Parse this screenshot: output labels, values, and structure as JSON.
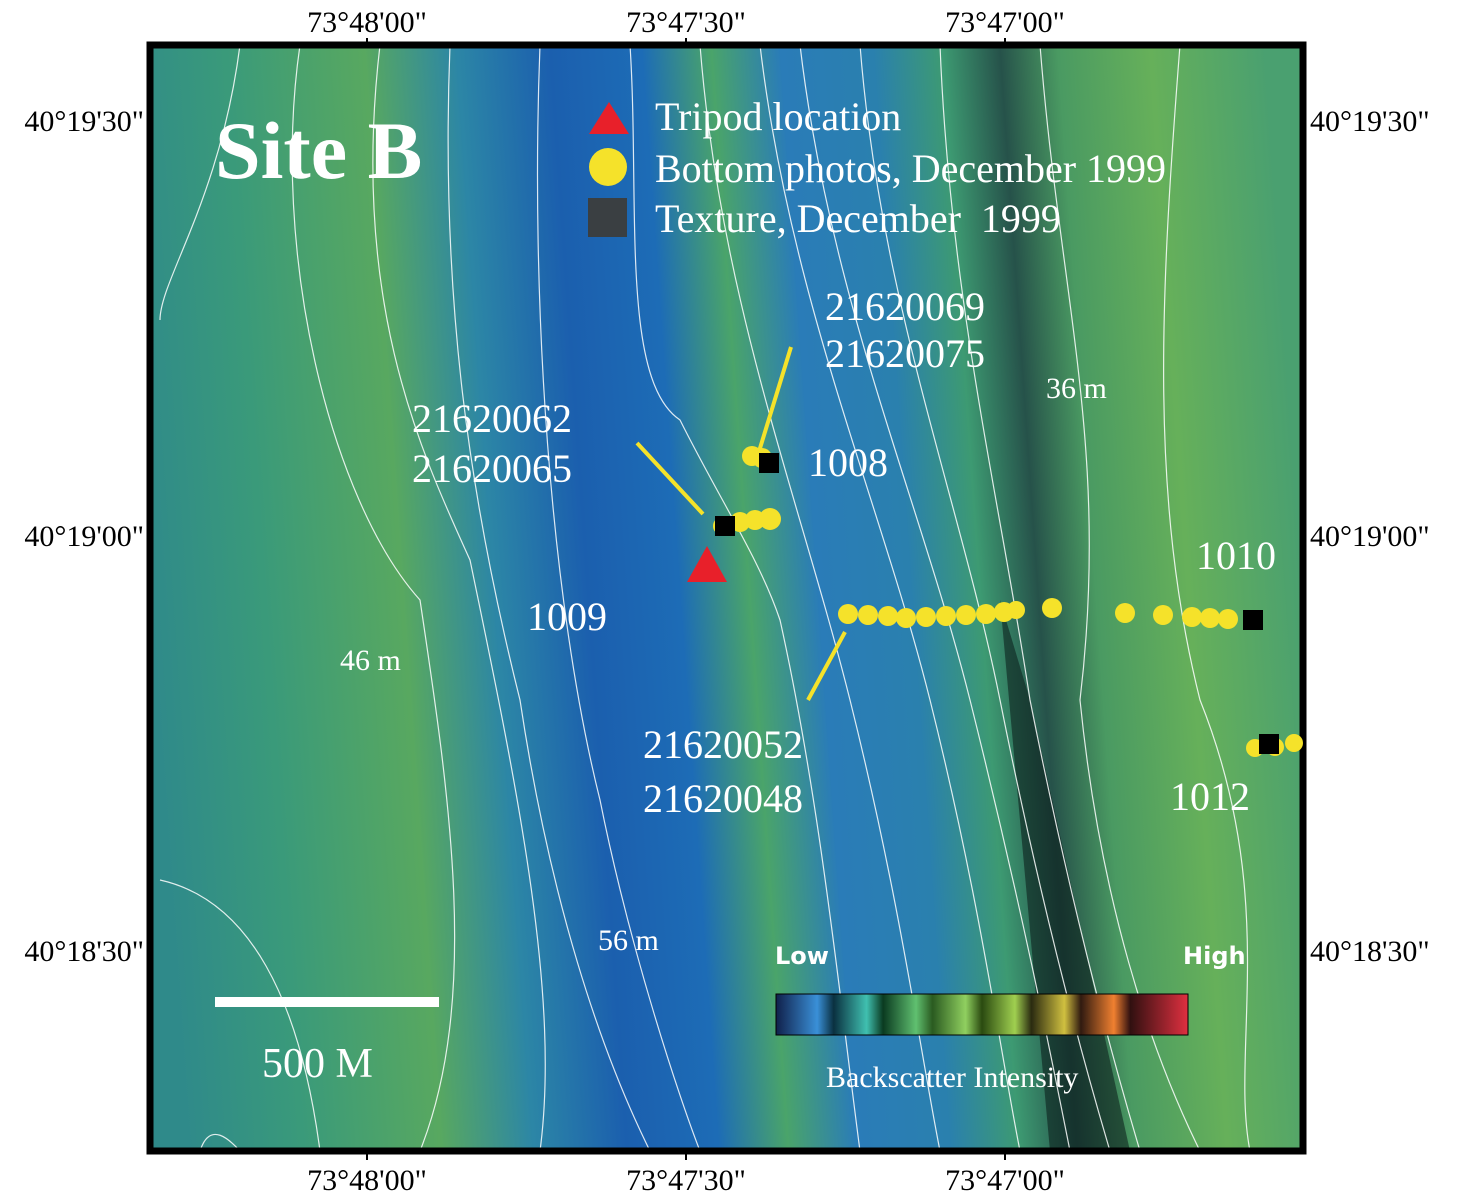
{
  "title": "Site B",
  "longitude_labels": [
    "73°48'00\"",
    "73°47'30\"",
    "73°47'00\""
  ],
  "latitude_labels": [
    "40°19'30\"",
    "40°19'00\"",
    "40°18'30\""
  ],
  "legend": [
    "Tripod location",
    "Bottom photos, December 1999",
    "Texture, December  1999"
  ],
  "annotations": {
    "photos_1008": [
      "21620069",
      "21620075"
    ],
    "photos_1009": [
      "21620062",
      "21620065"
    ],
    "photos_1010": [
      "21620052",
      "21620048"
    ],
    "stations": [
      "1008",
      "1009",
      "1010",
      "1012"
    ]
  },
  "depth_labels": [
    "36 m",
    "46 m",
    "56 m"
  ],
  "scale_bar": "500 M",
  "colorbar": {
    "low": "Low",
    "high": "High",
    "title": "Backscatter Intensity"
  }
}
